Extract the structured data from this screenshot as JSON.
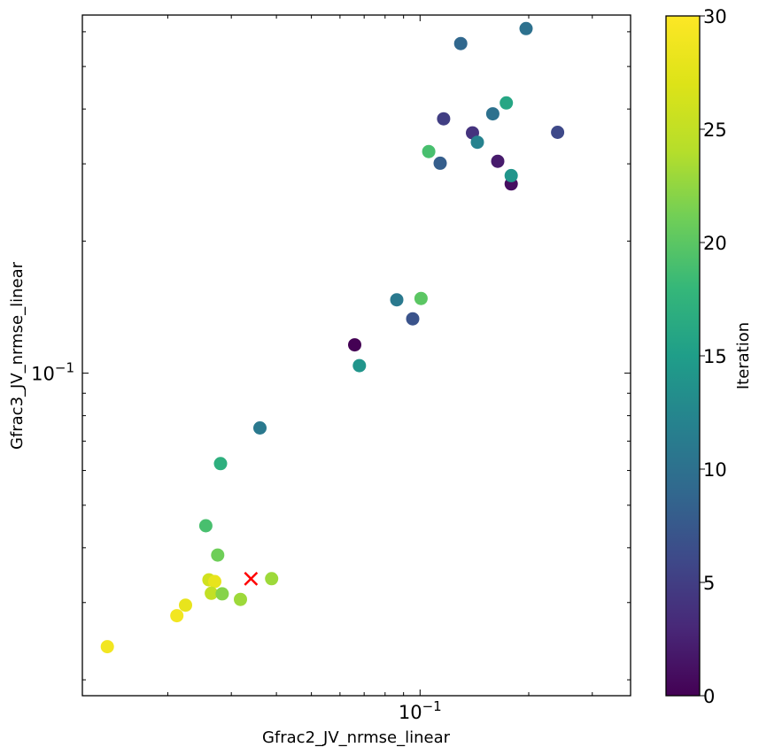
{
  "chart_data": {
    "type": "scatter",
    "title": "",
    "xlabel": "Gfrac2_JV_nrmse_linear",
    "ylabel": "Gfrac3_JV_nrmse_linear",
    "xscale": "log",
    "yscale": "log",
    "xlim": [
      0.0116,
      0.383
    ],
    "ylim": [
      0.0184,
      0.655
    ],
    "x_tick_labels": [
      {
        "value": 0.1,
        "base": "10",
        "exp": "−1"
      }
    ],
    "y_tick_labels": [
      {
        "value": 0.1,
        "base": "10",
        "exp": "−1"
      }
    ],
    "grid": false,
    "colorbar": {
      "label": "Iteration",
      "colormap": "viridis",
      "range": [
        0,
        30
      ],
      "ticks": [
        "0",
        "5",
        "10",
        "15",
        "20",
        "25",
        "30"
      ]
    },
    "points": [
      {
        "x": 0.0136,
        "y": 0.0238,
        "iteration": 29
      },
      {
        "x": 0.0212,
        "y": 0.028,
        "iteration": 29
      },
      {
        "x": 0.0224,
        "y": 0.0296,
        "iteration": 28
      },
      {
        "x": 0.026,
        "y": 0.0338,
        "iteration": 26
      },
      {
        "x": 0.027,
        "y": 0.0335,
        "iteration": 28
      },
      {
        "x": 0.0264,
        "y": 0.0315,
        "iteration": 25
      },
      {
        "x": 0.0283,
        "y": 0.0314,
        "iteration": 22
      },
      {
        "x": 0.0318,
        "y": 0.0305,
        "iteration": 23
      },
      {
        "x": 0.0388,
        "y": 0.034,
        "iteration": 23
      },
      {
        "x": 0.0275,
        "y": 0.0385,
        "iteration": 21
      },
      {
        "x": 0.0255,
        "y": 0.0449,
        "iteration": 19
      },
      {
        "x": 0.028,
        "y": 0.0622,
        "iteration": 17
      },
      {
        "x": 0.036,
        "y": 0.075,
        "iteration": 11
      },
      {
        "x": 0.0659,
        "y": 0.116,
        "iteration": 0
      },
      {
        "x": 0.0679,
        "y": 0.104,
        "iteration": 14
      },
      {
        "x": 0.0862,
        "y": 0.147,
        "iteration": 11
      },
      {
        "x": 0.0954,
        "y": 0.133,
        "iteration": 7
      },
      {
        "x": 0.1006,
        "y": 0.148,
        "iteration": 20
      },
      {
        "x": 0.1057,
        "y": 0.32,
        "iteration": 19
      },
      {
        "x": 0.1137,
        "y": 0.301,
        "iteration": 8
      },
      {
        "x": 0.1162,
        "y": 0.38,
        "iteration": 5
      },
      {
        "x": 0.1296,
        "y": 0.564,
        "iteration": 9
      },
      {
        "x": 0.1397,
        "y": 0.353,
        "iteration": 4
      },
      {
        "x": 0.1441,
        "y": 0.336,
        "iteration": 12
      },
      {
        "x": 0.159,
        "y": 0.39,
        "iteration": 10
      },
      {
        "x": 0.1641,
        "y": 0.304,
        "iteration": 2
      },
      {
        "x": 0.1734,
        "y": 0.413,
        "iteration": 16
      },
      {
        "x": 0.1788,
        "y": 0.27,
        "iteration": 1
      },
      {
        "x": 0.1788,
        "y": 0.282,
        "iteration": 14
      },
      {
        "x": 0.1966,
        "y": 0.61,
        "iteration": 10
      },
      {
        "x": 0.2405,
        "y": 0.354,
        "iteration": 6
      }
    ],
    "best_point": {
      "x": 0.034,
      "y": 0.034,
      "marker": "x",
      "color": "#ff0000"
    }
  }
}
